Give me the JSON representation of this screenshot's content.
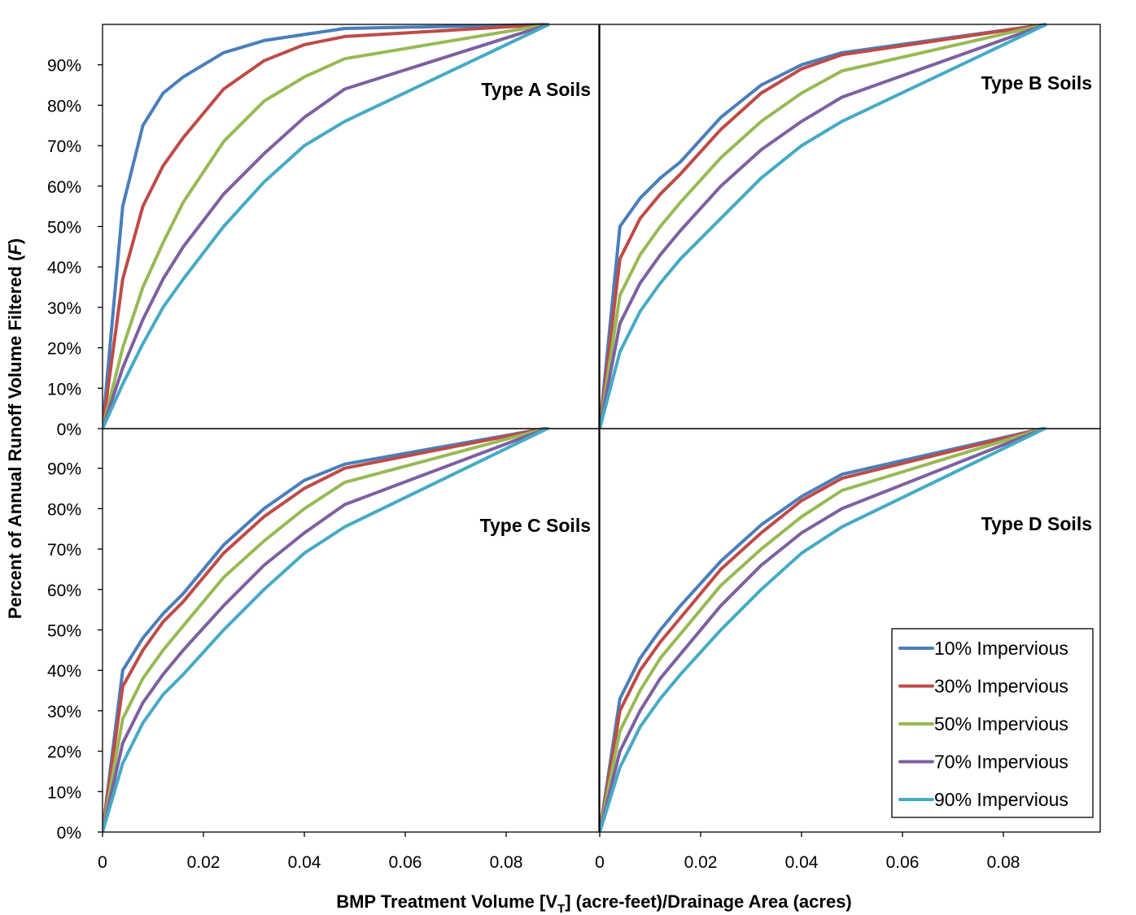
{
  "chart_data": {
    "type": "line",
    "xlabel_parts": [
      "BMP Treatment Volume [V",
      "T",
      "] (acre-feet)/Drainage Area (acres)"
    ],
    "ylabel_parts": [
      "Percent of Annual Runoff Volume Filtered (",
      "F",
      ")"
    ],
    "xlim": [
      0,
      0.0984
    ],
    "ylim": [
      0,
      1
    ],
    "x_ticks": [
      0,
      0.02,
      0.04,
      0.06,
      0.08
    ],
    "x_tick_labels": [
      "0",
      "0.02",
      "0.04",
      "0.06",
      "0.08"
    ],
    "y_ticks": [
      0,
      0.1,
      0.2,
      0.3,
      0.4,
      0.5,
      0.6,
      0.7,
      0.8,
      0.9
    ],
    "y_tick_labels": [
      "0%",
      "10%",
      "20%",
      "30%",
      "40%",
      "50%",
      "60%",
      "70%",
      "80%",
      "90%"
    ],
    "grid": false,
    "legend_placement": "bottom-right of Type D panel",
    "series_names": [
      "10% Impervious",
      "30% Impervious",
      "50% Impervious",
      "70% Impervious",
      "90% Impervious"
    ],
    "series_colors": [
      "#4a7ebb",
      "#be4b48",
      "#98b954",
      "#7d60a0",
      "#46aac5"
    ],
    "x": [
      0,
      0.004,
      0.008,
      0.012,
      0.016,
      0.024,
      0.032,
      0.04,
      0.048,
      0.0885
    ],
    "panels": [
      {
        "label": "Type A Soils",
        "series": [
          [
            0,
            0.55,
            0.75,
            0.83,
            0.87,
            0.93,
            0.96,
            0.975,
            0.99,
            1.0
          ],
          [
            0,
            0.37,
            0.55,
            0.65,
            0.72,
            0.84,
            0.91,
            0.95,
            0.97,
            1.0
          ],
          [
            0,
            0.2,
            0.35,
            0.46,
            0.56,
            0.71,
            0.81,
            0.87,
            0.915,
            1.0
          ],
          [
            0,
            0.15,
            0.27,
            0.37,
            0.45,
            0.58,
            0.68,
            0.77,
            0.84,
            1.0
          ],
          [
            0,
            0.11,
            0.21,
            0.3,
            0.37,
            0.5,
            0.61,
            0.7,
            0.76,
            1.0
          ]
        ]
      },
      {
        "label": "Type B Soils",
        "series": [
          [
            0,
            0.5,
            0.57,
            0.62,
            0.66,
            0.77,
            0.85,
            0.9,
            0.93,
            1.0
          ],
          [
            0,
            0.42,
            0.52,
            0.58,
            0.63,
            0.74,
            0.83,
            0.89,
            0.925,
            1.0
          ],
          [
            0,
            0.33,
            0.43,
            0.5,
            0.56,
            0.67,
            0.76,
            0.83,
            0.885,
            1.0
          ],
          [
            0,
            0.26,
            0.36,
            0.43,
            0.49,
            0.6,
            0.69,
            0.76,
            0.82,
            1.0
          ],
          [
            0,
            0.19,
            0.29,
            0.36,
            0.42,
            0.52,
            0.62,
            0.7,
            0.76,
            1.0
          ]
        ]
      },
      {
        "label": "Type C Soils",
        "series": [
          [
            0,
            0.4,
            0.48,
            0.54,
            0.59,
            0.71,
            0.8,
            0.87,
            0.91,
            1.0
          ],
          [
            0,
            0.36,
            0.45,
            0.52,
            0.57,
            0.69,
            0.78,
            0.85,
            0.9,
            1.0
          ],
          [
            0,
            0.28,
            0.38,
            0.45,
            0.51,
            0.63,
            0.72,
            0.8,
            0.865,
            1.0
          ],
          [
            0,
            0.22,
            0.32,
            0.39,
            0.45,
            0.56,
            0.66,
            0.74,
            0.81,
            1.0
          ],
          [
            0,
            0.17,
            0.27,
            0.34,
            0.39,
            0.5,
            0.6,
            0.69,
            0.755,
            1.0
          ]
        ]
      },
      {
        "label": "Type D Soils",
        "series": [
          [
            0,
            0.33,
            0.43,
            0.5,
            0.56,
            0.67,
            0.76,
            0.83,
            0.885,
            1.0
          ],
          [
            0,
            0.3,
            0.4,
            0.47,
            0.53,
            0.65,
            0.74,
            0.82,
            0.875,
            1.0
          ],
          [
            0,
            0.25,
            0.35,
            0.43,
            0.49,
            0.61,
            0.7,
            0.78,
            0.845,
            1.0
          ],
          [
            0,
            0.2,
            0.3,
            0.38,
            0.44,
            0.56,
            0.66,
            0.74,
            0.8,
            1.0
          ],
          [
            0,
            0.16,
            0.26,
            0.33,
            0.39,
            0.5,
            0.6,
            0.69,
            0.755,
            1.0
          ]
        ]
      }
    ]
  }
}
